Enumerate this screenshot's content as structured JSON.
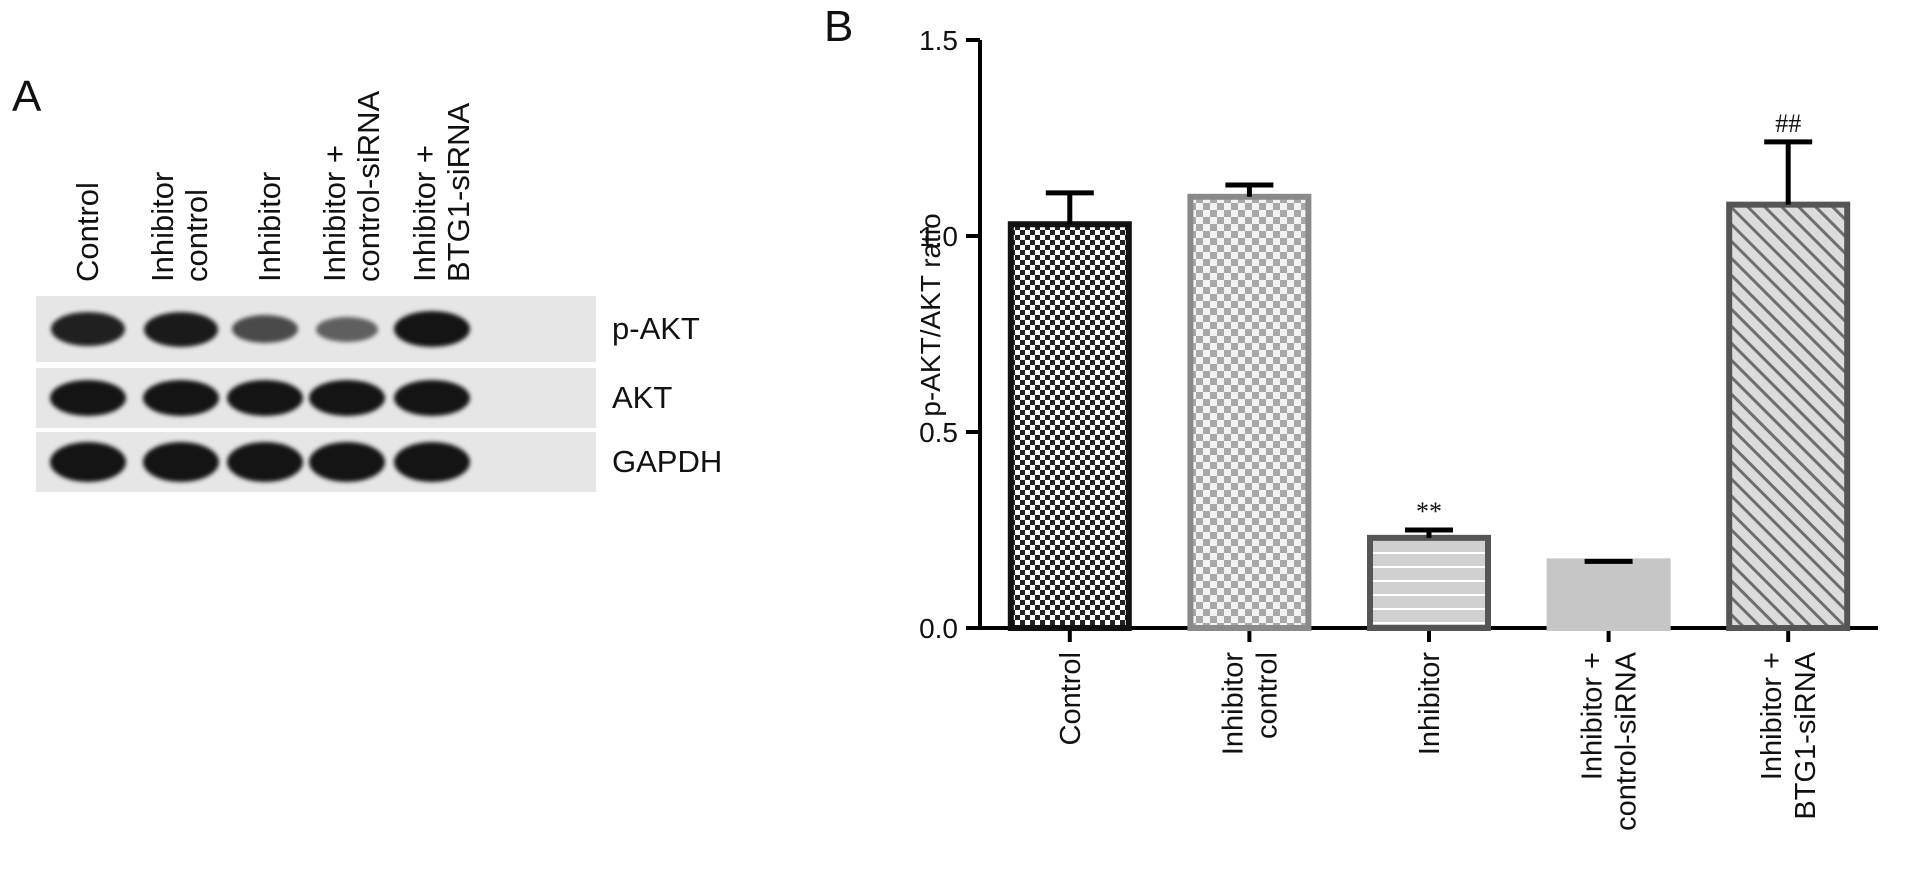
{
  "panel_a": {
    "letter": "A",
    "lanes": [
      {
        "lines": [
          "Control"
        ]
      },
      {
        "lines": [
          "Inhibitor",
          "control"
        ]
      },
      {
        "lines": [
          "Inhibitor"
        ]
      },
      {
        "lines": [
          "Inhibitor +",
          "control-siRNA"
        ]
      },
      {
        "lines": [
          "Inhibitor +",
          "BTG1-siRNA"
        ]
      }
    ],
    "blots": [
      {
        "label": "p-AKT",
        "intensities": [
          0.9,
          0.95,
          0.6,
          0.45,
          1.0
        ]
      },
      {
        "label": "AKT",
        "intensities": [
          1.0,
          1.0,
          1.0,
          1.0,
          1.0
        ]
      },
      {
        "label": "GAPDH",
        "intensities": [
          1.0,
          1.0,
          1.0,
          1.0,
          1.0
        ]
      }
    ]
  },
  "chart_data": {
    "type": "bar",
    "panel_letter": "B",
    "categories": [
      [
        "Control"
      ],
      [
        "Inhibitor",
        "control"
      ],
      [
        "Inhibitor"
      ],
      [
        "Inhibitor +",
        "control-siRNA"
      ],
      [
        "Inhibitor +",
        "BTG1-siRNA"
      ]
    ],
    "values": [
      1.03,
      1.1,
      0.23,
      0.17,
      1.08
    ],
    "errors": [
      0.08,
      0.03,
      0.02,
      0.0,
      0.16
    ],
    "annotations": [
      "",
      "",
      "**",
      "",
      "##"
    ],
    "patterns": [
      "checker-dark",
      "checker-light",
      "horizontal-lines",
      "solid-light",
      "diagonal-lines"
    ],
    "ylabel": "p-AKT/AKT ratio",
    "ylim": [
      0,
      1.5
    ],
    "yticks": [
      "0.0",
      "0.5",
      "1.0",
      "1.5"
    ],
    "grid": false
  }
}
